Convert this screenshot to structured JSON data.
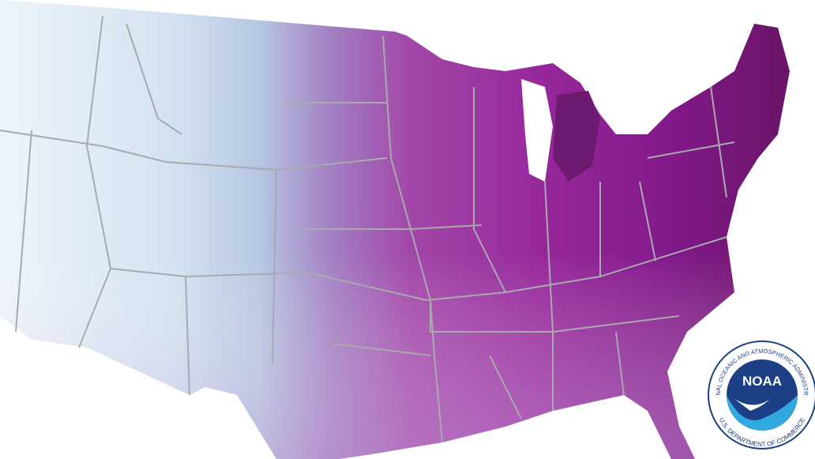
{
  "logo": {
    "acronym": "NOAA",
    "agency": "NATIONAL OCEANIC AND ATMOSPHERIC ADMINISTRATION",
    "department": "U.S. DEPARTMENT OF COMMERCE"
  }
}
